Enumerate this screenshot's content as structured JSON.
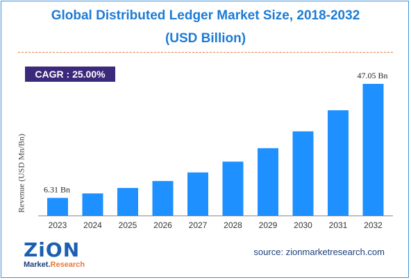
{
  "title_line1": "Global Distributed Ledger Market Size, 2018-2032",
  "title_line2": "(USD Billion)",
  "cagr_label": "CAGR : 25.00%",
  "source_text": "source: zionmarketresearch.com",
  "logo": {
    "word": "ZiON",
    "sub_left": "Market.",
    "sub_right": "Research"
  },
  "colors": {
    "bar": "#1e90ff",
    "title": "#1c7bd4",
    "cagr_bg": "#3b2a7c",
    "separator": "#e8793a"
  },
  "chart_data": {
    "type": "bar",
    "categories": [
      "2023",
      "2024",
      "2025",
      "2026",
      "2027",
      "2028",
      "2029",
      "2030",
      "2031",
      "2032"
    ],
    "values": [
      6.31,
      7.89,
      9.86,
      12.32,
      15.41,
      19.26,
      24.07,
      30.09,
      37.61,
      47.05
    ],
    "ylabel": "Revenue (USD Mn/Bn)",
    "data_labels": [
      {
        "index": 0,
        "text": "6.31 Bn"
      },
      {
        "index": 9,
        "text": "47.05 Bn"
      }
    ],
    "ylim": [
      0,
      47.05
    ],
    "grid": false,
    "legend": "none"
  }
}
